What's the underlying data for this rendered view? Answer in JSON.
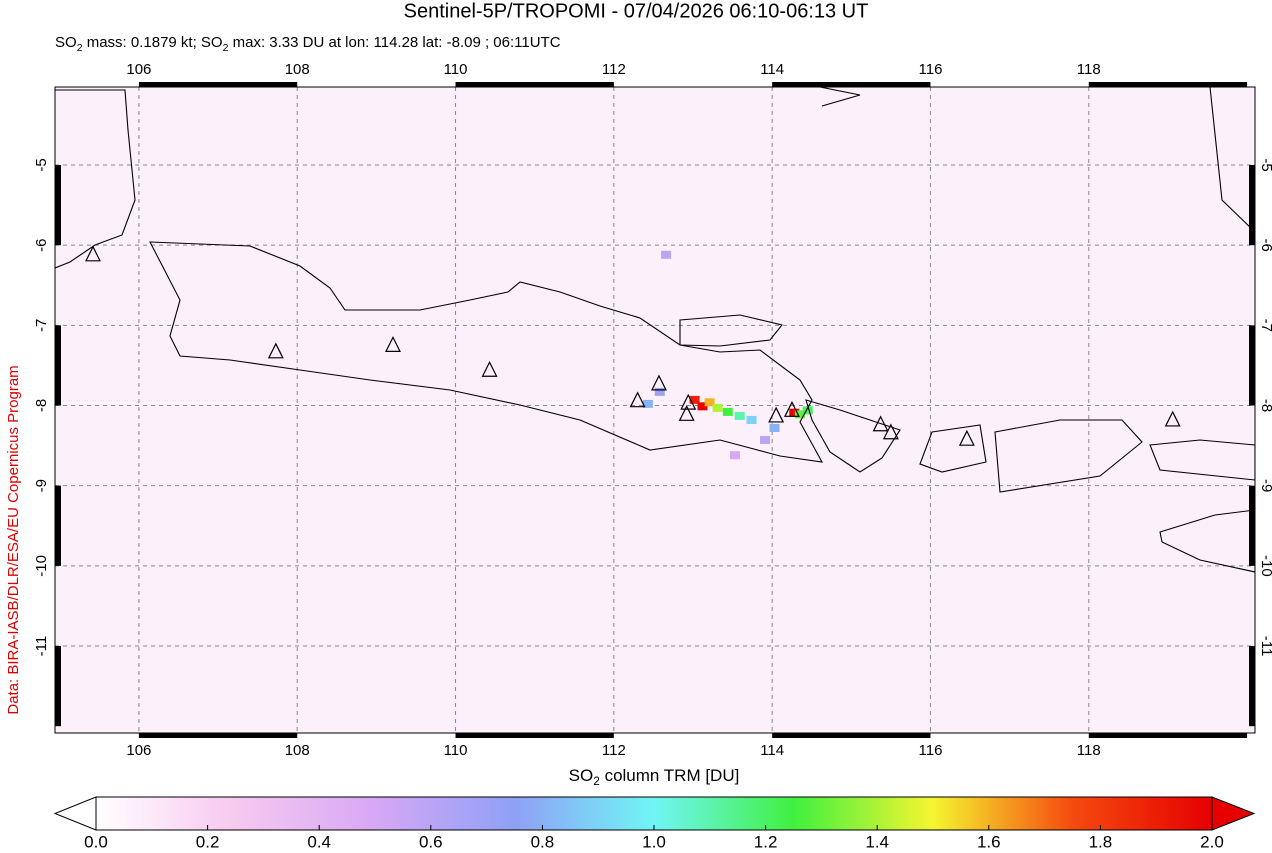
{
  "chart_data": {
    "type": "map",
    "title": "Sentinel-5P/TROPOMI - 07/04/2026 06:10-06:13 UT",
    "subtitle_parts": [
      "SO",
      "2",
      " mass: 0.1879 kt; SO",
      "2",
      " max: 3.33 DU at lon: 114.28 lat: -8.09 ; 06:11UTC"
    ],
    "credit": "Data: BIRA-IASB/DLR/ESA/EU Copernicus Program",
    "xlim": [
      104.94,
      120.1
    ],
    "ylim": [
      -12.085,
      -4.027
    ],
    "xticks": [
      106,
      108,
      110,
      112,
      114,
      116,
      118
    ],
    "yticks": [
      -5,
      -6,
      -7,
      -8,
      -9,
      -10,
      -11
    ],
    "grid": true,
    "volcanoes": {
      "lon": [
        105.42,
        107.73,
        109.21,
        110.43,
        112.3,
        112.57,
        112.94,
        112.92,
        114.05,
        114.25,
        115.37,
        115.5,
        116.46,
        119.06
      ],
      "lat": [
        -6.12,
        -7.33,
        -7.25,
        -7.56,
        -7.94,
        -7.73,
        -7.97,
        -8.11,
        -8.13,
        -8.06,
        -8.24,
        -8.34,
        -8.42,
        -8.18
      ]
    },
    "so2_pixels": {
      "lon": [
        114.28,
        113.02,
        113.12,
        113.21,
        113.31,
        113.44,
        113.59,
        113.74,
        114.35,
        114.45,
        114.03,
        113.91,
        112.58,
        112.43,
        112.66,
        113.53
      ],
      "lat": [
        -8.09,
        -7.93,
        -8.01,
        -7.96,
        -8.03,
        -8.08,
        -8.13,
        -8.18,
        -8.11,
        -8.06,
        -8.28,
        -8.43,
        -7.83,
        -7.98,
        -6.12,
        -8.62
      ],
      "values": [
        3.33,
        1.9,
        2.0,
        1.6,
        1.4,
        1.25,
        1.1,
        0.9,
        1.3,
        1.2,
        0.8,
        0.6,
        0.7,
        0.8,
        0.6,
        0.5
      ]
    },
    "colorbar": {
      "label_parts": [
        "SO",
        "2",
        " column TRM [DU]"
      ],
      "lim": [
        0,
        2
      ],
      "colors": [
        "#ffffff",
        "#f7c8f0",
        "#d6a8f5",
        "#8fa0f5",
        "#70f5f5",
        "#40f040",
        "#f5f530",
        "#f54a10",
        "#e60000"
      ],
      "ticks": [
        {
          "value": 0,
          "label": "0.0"
        },
        {
          "value": 0.2,
          "label": "0.2"
        },
        {
          "value": 0.4,
          "label": "0.4"
        },
        {
          "value": 0.6,
          "label": "0.6"
        },
        {
          "value": 0.8,
          "label": "0.8"
        },
        {
          "value": 1,
          "label": "1.0"
        },
        {
          "value": 1.2,
          "label": "1.2"
        },
        {
          "value": 1.4,
          "label": "1.4"
        },
        {
          "value": 1.6,
          "label": "1.6"
        },
        {
          "value": 1.8,
          "label": "1.8"
        },
        {
          "value": 2,
          "label": "2.0"
        }
      ]
    }
  }
}
